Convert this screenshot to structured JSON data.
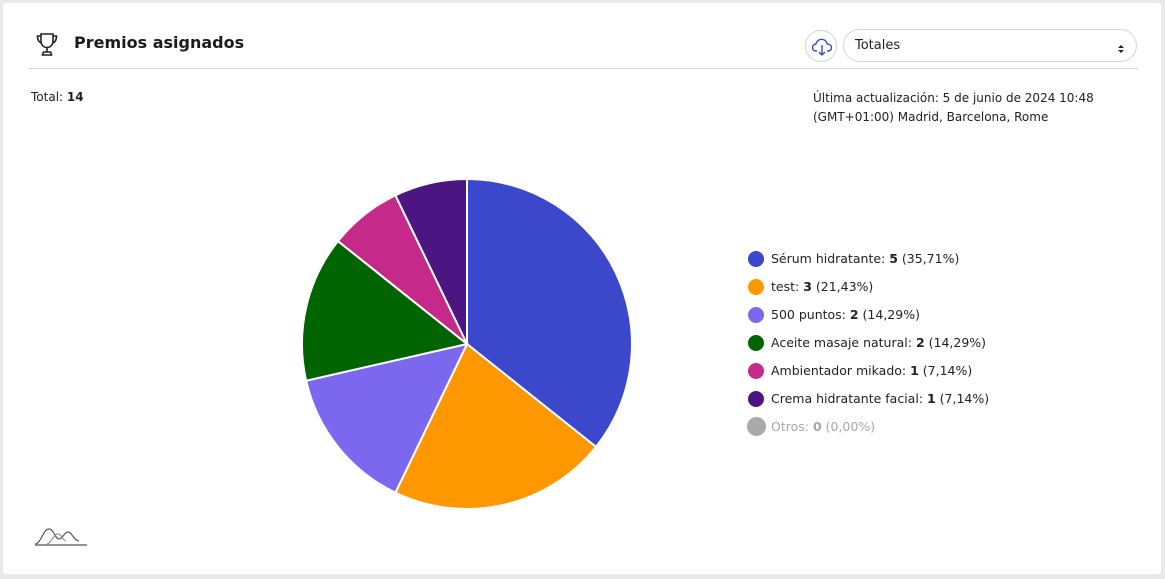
{
  "header": {
    "title": "Premios asignados",
    "trophy_icon": "trophy-icon",
    "download_icon": "cloud-download-icon",
    "select_value": "Totales"
  },
  "summary": {
    "total_label": "Total:",
    "total_value": "14",
    "updated_line1": "Última actualización: 5 de junio de 2024 10:48",
    "updated_line2": "(GMT+01:00) Madrid, Barcelona, Rome"
  },
  "chart_data": {
    "type": "pie",
    "title": "",
    "categories": [
      "Sérum hidratante",
      "test",
      "500 puntos",
      "Aceite masaje natural",
      "Ambientador mikado",
      "Crema hidratante facial",
      "Otros"
    ],
    "values": [
      5,
      3,
      2,
      2,
      1,
      1,
      0
    ],
    "percent_labels": [
      "(35,71%)",
      "(21,43%)",
      "(14,29%)",
      "(14,29%)",
      "(7,14%)",
      "(7,14%)",
      "(0,00%)"
    ],
    "colors": [
      "#3b48cc",
      "#ff9800",
      "#7b68ee",
      "#006400",
      "#c52a8a",
      "#4b1582",
      "#aaaaaa"
    ],
    "legend_position": "right"
  },
  "colors": {
    "accent": "#3b48cc"
  }
}
